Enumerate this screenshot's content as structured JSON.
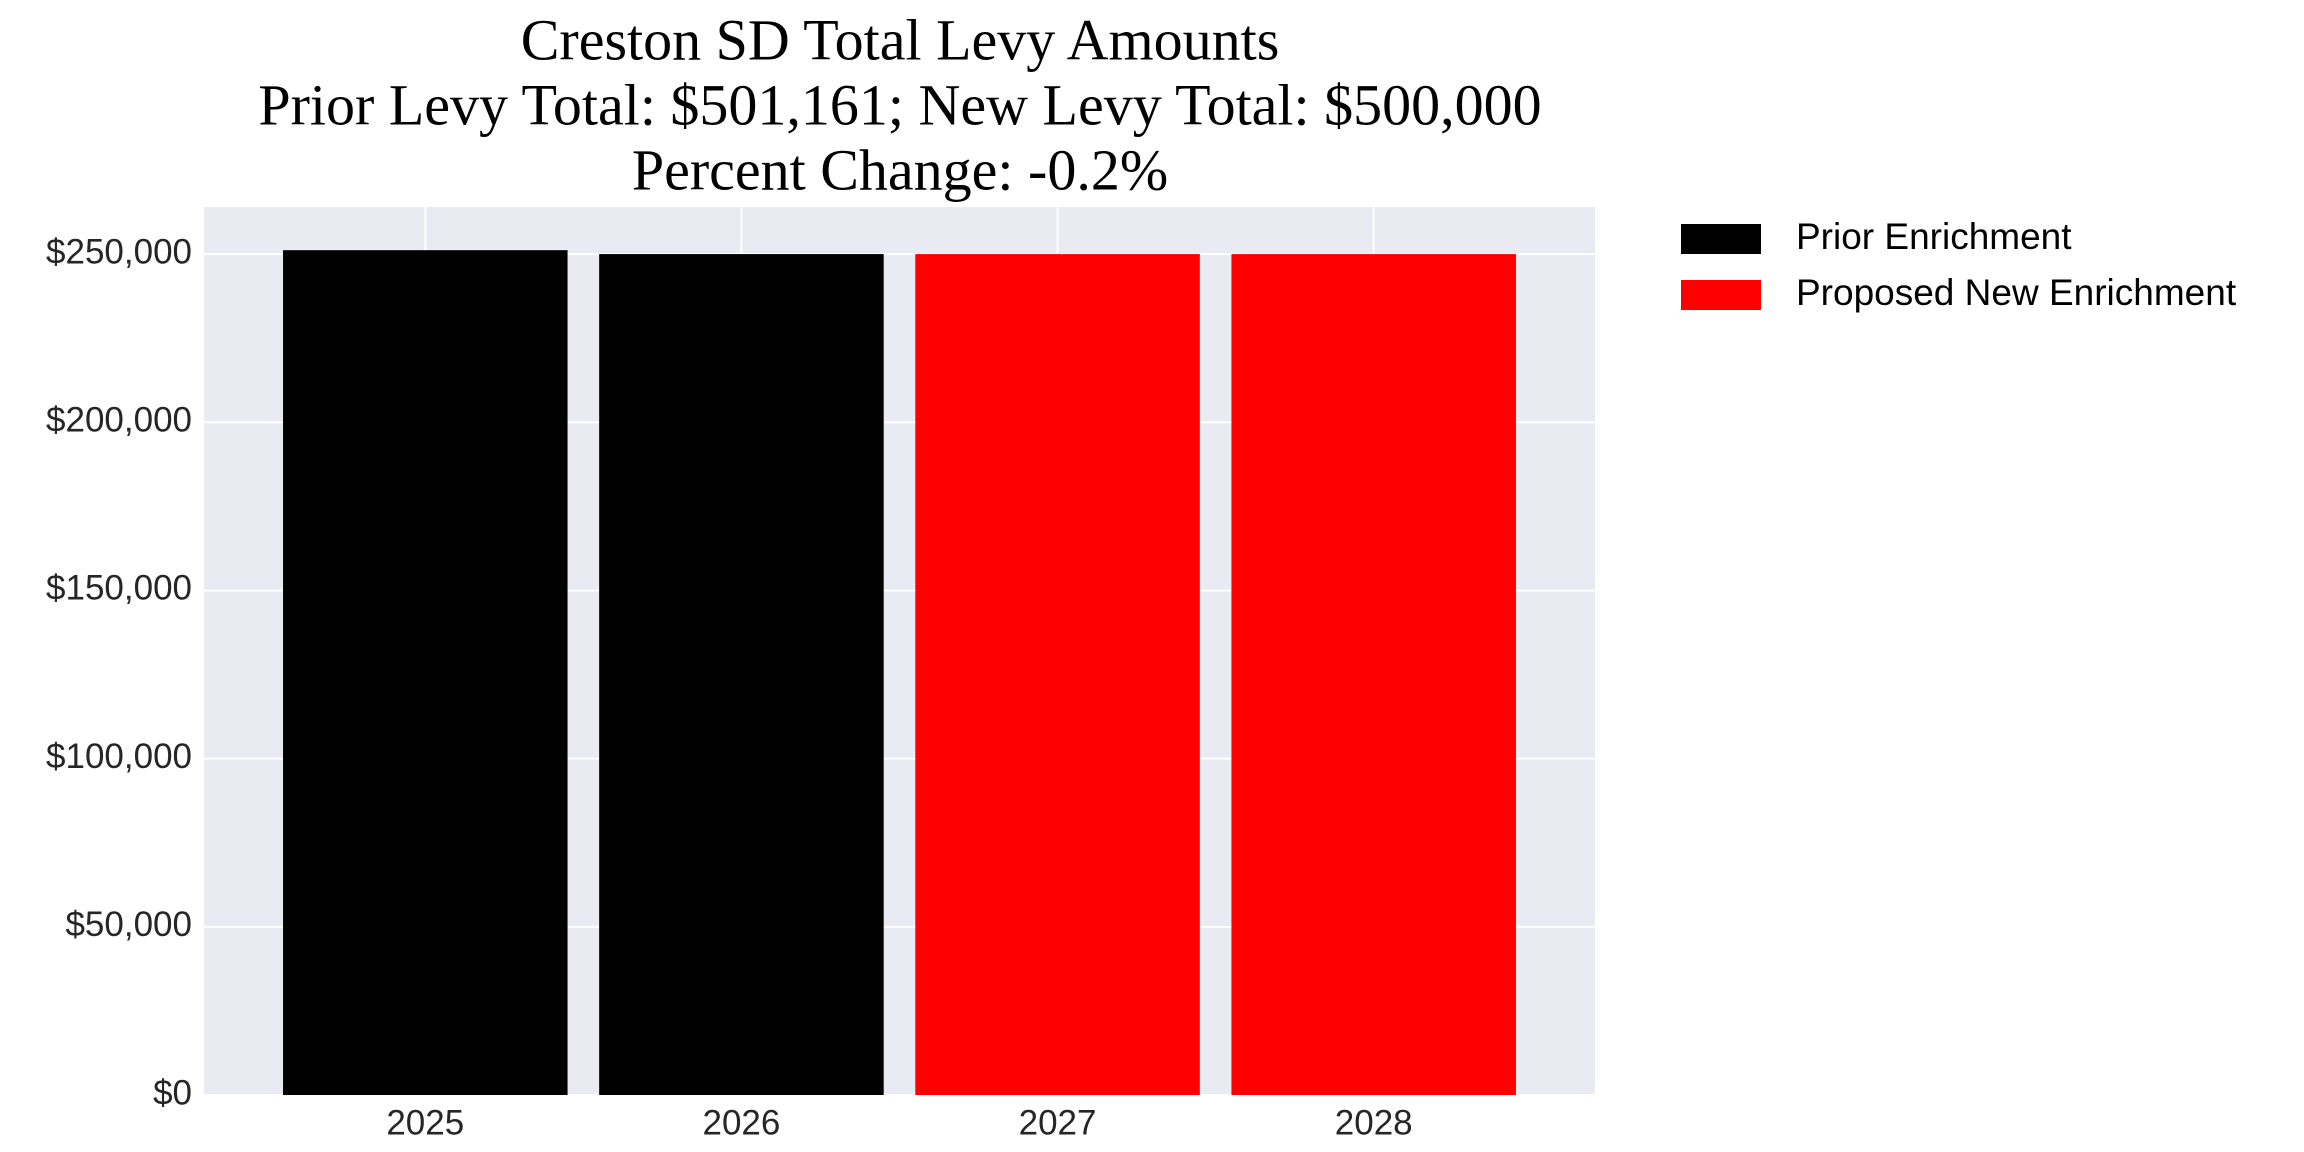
{
  "chart_data": {
    "type": "bar",
    "title": "Creston SD Total Levy Amounts",
    "subtitle": [
      "Prior Levy Total:  $501,161; New Levy Total: $500,000",
      "Percent Change: -0.2%"
    ],
    "categories": [
      "2025",
      "2026",
      "2027",
      "2028"
    ],
    "series": [
      {
        "name": "Prior Enrichment",
        "color": "#000000",
        "values": [
          251161,
          250000,
          null,
          null
        ]
      },
      {
        "name": "Proposed New Enrichment",
        "color": "#ff0000",
        "values": [
          null,
          null,
          250000,
          250000
        ]
      }
    ],
    "ylim": [
      0,
      264000
    ],
    "yticks": [
      {
        "value": 0,
        "label": "$0"
      },
      {
        "value": 50000,
        "label": "$50,000"
      },
      {
        "value": 100000,
        "label": "$100,000"
      },
      {
        "value": 150000,
        "label": "$150,000"
      },
      {
        "value": 200000,
        "label": "$200,000"
      },
      {
        "value": 250000,
        "label": "$250,000"
      }
    ],
    "grid": true,
    "background": "#eaeaf2",
    "legend": "outside right"
  }
}
